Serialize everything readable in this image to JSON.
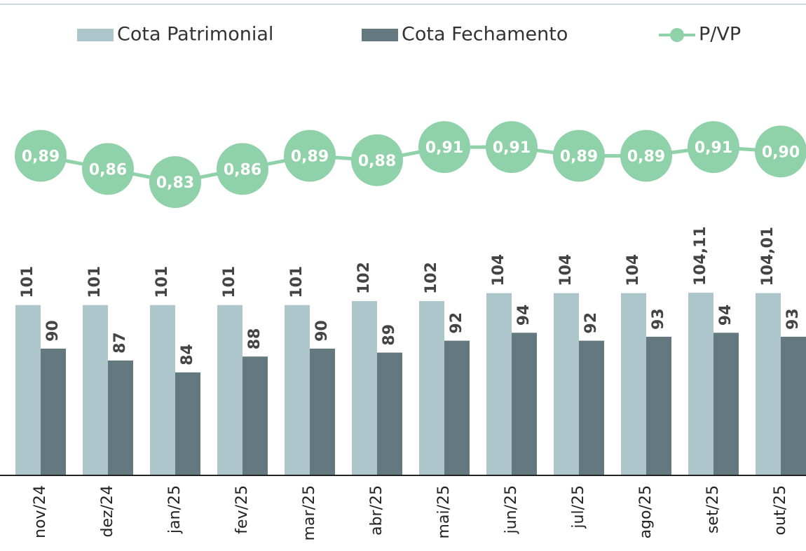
{
  "chart_data": {
    "type": "bar-line",
    "categories": [
      "nov/24",
      "dez/24",
      "jan/25",
      "fev/25",
      "mar/25",
      "abr/25",
      "mai/25",
      "jun/25",
      "jul/25",
      "ago/25",
      "set/25",
      "out/25"
    ],
    "series": [
      {
        "name": "Cota Patrimonial",
        "color": "#adc6cc",
        "type": "bar",
        "values": [
          101,
          101,
          101,
          101,
          101,
          102,
          102,
          104,
          104,
          104,
          104.11,
          104.01
        ],
        "value_labels": [
          "101",
          "101",
          "101",
          "101",
          "101",
          "102",
          "102",
          "104",
          "104",
          "104",
          "104,11",
          "104,01"
        ]
      },
      {
        "name": "Cota Fechamento",
        "color": "#647880",
        "type": "bar",
        "values": [
          90,
          87,
          84,
          88,
          90,
          89,
          92,
          94,
          92,
          93,
          94,
          93
        ]
      },
      {
        "name": "P/VP",
        "color": "#8fd1a8",
        "type": "line",
        "axis": "y2",
        "values": [
          0.89,
          0.86,
          0.83,
          0.86,
          0.89,
          0.88,
          0.91,
          0.91,
          0.89,
          0.89,
          0.91,
          0.9
        ],
        "value_labels": [
          "0,89",
          "0,86",
          "0,83",
          "0,86",
          "0,89",
          "0,88",
          "0,91",
          "0,91",
          "0,89",
          "0,89",
          "0,91",
          "0,90"
        ]
      }
    ],
    "ylim": [
      58,
      178
    ],
    "y2lim": [
      0.16,
      1.246
    ],
    "legend": "top"
  }
}
